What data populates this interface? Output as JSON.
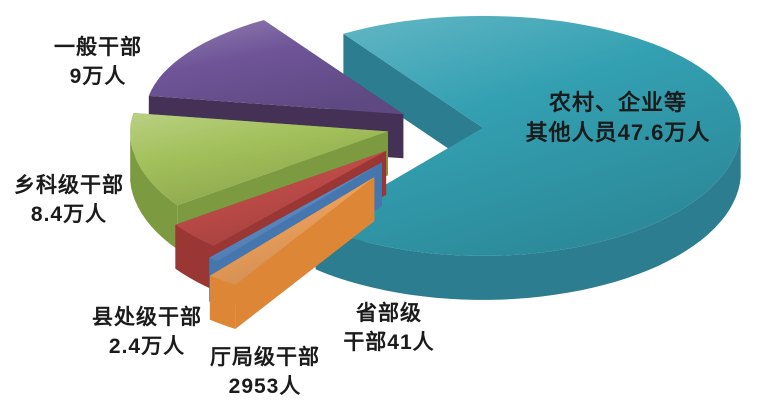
{
  "page": {
    "background": "#ffffff"
  },
  "chart_data": {
    "type": "pie",
    "style": "3d-exploded",
    "unit": "人",
    "legend": "none",
    "label_text_color": "#1b1b1b",
    "slices": [
      {
        "id": "rural-enterprise-others",
        "name": "农村、企业等其他人员",
        "value": 476000,
        "display_value": "47.6万人",
        "label_lines": [
          "农村、企业等",
          "其他人员47.6万人"
        ],
        "color": "#33a0b2",
        "side_color": "#2b7d8f"
      },
      {
        "id": "general-cadres",
        "name": "一般干部",
        "value": 90000,
        "display_value": "9万人",
        "label_lines": [
          "一般干部",
          "9万人"
        ],
        "color": "#6f5598",
        "side_color": "#453056"
      },
      {
        "id": "township-section-level-cadres",
        "name": "乡科级干部",
        "value": 84000,
        "display_value": "8.4万人",
        "label_lines": [
          "乡科级干部",
          "8.4万人"
        ],
        "color": "#a2c05a",
        "side_color": "#7c9a3f"
      },
      {
        "id": "county-division-level-cadres",
        "name": "县处级干部",
        "value": 24000,
        "display_value": "2.4万人",
        "label_lines": [
          "县处级干部",
          "2.4万人"
        ],
        "color": "#be4b48",
        "side_color": "#9a3734"
      },
      {
        "id": "bureau-department-level-cadres",
        "name": "厅局级干部",
        "value": 2953,
        "display_value": "2953人",
        "label_lines": [
          "厅局级干部",
          "2953人"
        ],
        "color": "#5b8ac4",
        "side_color": "#4577ae"
      },
      {
        "id": "provincial-ministerial-level-cadres",
        "name": "省部级干部",
        "value": 41,
        "display_value": "41人",
        "label_lines": [
          "省部级",
          "干部41人"
        ],
        "color": "#eda05c",
        "side_color": "#dd8736"
      }
    ]
  }
}
